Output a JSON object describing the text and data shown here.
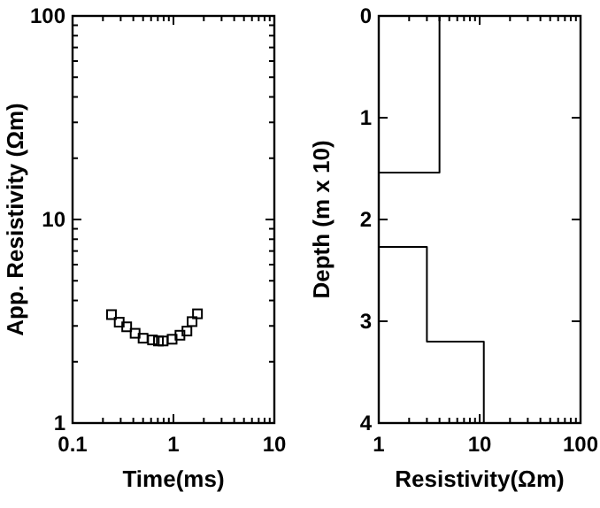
{
  "chart_data": [
    {
      "type": "scatter",
      "xlabel": "Time(ms)",
      "ylabel": "App. Resistivity (Ωm)",
      "log": "xy",
      "marker": "square",
      "grid": false,
      "x": [
        0.243,
        0.29,
        0.344,
        0.417,
        0.5,
        0.62,
        0.71,
        0.79,
        0.97,
        1.16,
        1.36,
        1.53,
        1.73
      ],
      "series": [
        {
          "color": "#000000",
          "values": [
            3.41,
            3.13,
            2.97,
            2.76,
            2.61,
            2.56,
            2.53,
            2.53,
            2.58,
            2.7,
            2.83,
            3.15,
            3.44
          ]
        }
      ],
      "xlim": [
        0.1,
        10
      ],
      "ylim": [
        1,
        100
      ],
      "xticks": [
        0.1,
        {
          "value": 0.2,
          "label": null
        },
        {
          "value": 0.3,
          "label": null
        },
        {
          "value": 0.4,
          "label": null
        },
        {
          "value": 0.5,
          "label": null
        },
        {
          "value": 0.6,
          "label": null
        },
        {
          "value": 0.7,
          "label": null
        },
        {
          "value": 0.8,
          "label": null
        },
        {
          "value": 0.9,
          "label": null
        },
        1,
        {
          "value": 2,
          "label": null
        },
        {
          "value": 3,
          "label": null
        },
        {
          "value": 4,
          "label": null
        },
        {
          "value": 5,
          "label": null
        },
        {
          "value": 6,
          "label": null
        },
        {
          "value": 7,
          "label": null
        },
        {
          "value": 8,
          "label": null
        },
        {
          "value": 9,
          "label": null
        },
        10
      ],
      "yticks": [
        1,
        {
          "value": 2,
          "label": null
        },
        {
          "value": 3,
          "label": null
        },
        {
          "value": 4,
          "label": null
        },
        {
          "value": 5,
          "label": null
        },
        {
          "value": 6,
          "label": null
        },
        {
          "value": 7,
          "label": null
        },
        {
          "value": 8,
          "label": null
        },
        {
          "value": 9,
          "label": null
        },
        10,
        {
          "value": 20,
          "label": null
        },
        {
          "value": 30,
          "label": null
        },
        {
          "value": 40,
          "label": null
        },
        {
          "value": 50,
          "label": null
        },
        {
          "value": 60,
          "label": null
        },
        {
          "value": 70,
          "label": null
        },
        {
          "value": 80,
          "label": null
        },
        {
          "value": 90,
          "label": null
        },
        100
      ]
    },
    {
      "type": "line",
      "xlabel": "Resistivity(Ωm)",
      "ylabel": "Depth (m x 10)",
      "log": "x",
      "grid": false,
      "marker": "none",
      "line_style": "solid",
      "series": [
        {
          "color": "#000000",
          "x": [
            4,
            4,
            1,
            null,
            1,
            3,
            3,
            11,
            11
          ],
          "values": [
            0,
            1.54,
            1.54,
            null,
            2.27,
            2.27,
            3.2,
            3.2,
            4
          ]
        }
      ],
      "xlim": [
        1,
        100
      ],
      "ylim": [
        4,
        0
      ],
      "xticks": [
        1,
        {
          "value": 2,
          "label": null
        },
        {
          "value": 3,
          "label": null
        },
        {
          "value": 4,
          "label": null
        },
        {
          "value": 5,
          "label": null
        },
        {
          "value": 6,
          "label": null
        },
        {
          "value": 7,
          "label": null
        },
        {
          "value": 8,
          "label": null
        },
        {
          "value": 9,
          "label": null
        },
        10,
        {
          "value": 20,
          "label": null
        },
        {
          "value": 30,
          "label": null
        },
        {
          "value": 40,
          "label": null
        },
        {
          "value": 50,
          "label": null
        },
        {
          "value": 60,
          "label": null
        },
        {
          "value": 70,
          "label": null
        },
        {
          "value": 80,
          "label": null
        },
        {
          "value": 90,
          "label": null
        },
        100
      ],
      "yticks": [
        0,
        1,
        2,
        3,
        4
      ]
    }
  ]
}
